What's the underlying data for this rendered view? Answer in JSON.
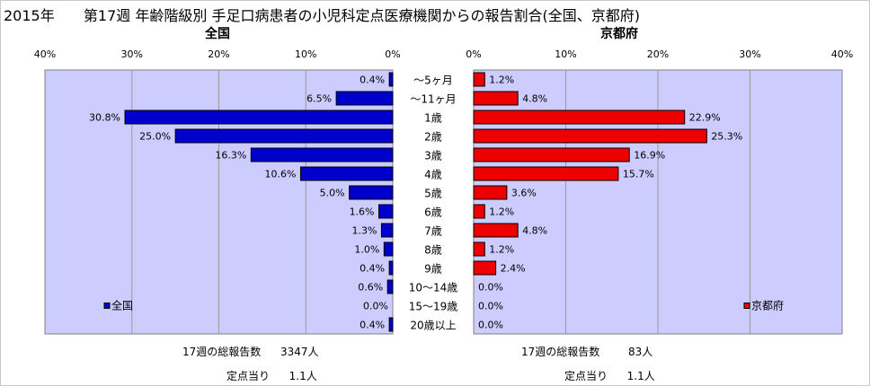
{
  "title": {
    "year": "2015年",
    "main": "第17週 年齢階級別 手足口病患者の小児科定点医療機関からの報告割合(全国、京都府)"
  },
  "chart_data": [
    {
      "type": "bar",
      "orientation": "horizontal",
      "direction": "right-to-left",
      "title": "全国",
      "categories": [
        "～5ヶ月",
        "～11ヶ月",
        "1歳",
        "2歳",
        "3歳",
        "4歳",
        "5歳",
        "6歳",
        "7歳",
        "8歳",
        "9歳",
        "10～14歳",
        "15～19歳",
        "20歳以上"
      ],
      "series": [
        {
          "name": "全国",
          "values": [
            0.4,
            6.5,
            30.8,
            25.0,
            16.3,
            10.6,
            5.0,
            1.6,
            1.3,
            1.0,
            0.4,
            0.6,
            0.0,
            0.4
          ]
        }
      ],
      "value_labels": [
        "0.4%",
        "6.5%",
        "30.8%",
        "25.0%",
        "16.3%",
        "10.6%",
        "5.0%",
        "1.6%",
        "1.3%",
        "1.0%",
        "0.4%",
        "0.6%",
        "0.0%",
        "0.4%"
      ],
      "xlim": [
        0,
        40
      ],
      "x_ticks": [
        "40%",
        "30%",
        "20%",
        "10%",
        "0%"
      ],
      "grid": true,
      "legend": "bottom-left",
      "colors": {
        "bar": "#0000cc",
        "plot_bg": "#ccccff"
      }
    },
    {
      "type": "bar",
      "orientation": "horizontal",
      "direction": "left-to-right",
      "title": "京都府",
      "categories": [
        "～5ヶ月",
        "～11ヶ月",
        "1歳",
        "2歳",
        "3歳",
        "4歳",
        "5歳",
        "6歳",
        "7歳",
        "8歳",
        "9歳",
        "10～14歳",
        "15～19歳",
        "20歳以上"
      ],
      "series": [
        {
          "name": "京都府",
          "values": [
            1.2,
            4.8,
            22.9,
            25.3,
            16.9,
            15.7,
            3.6,
            1.2,
            4.8,
            1.2,
            2.4,
            0.0,
            0.0,
            0.0
          ]
        }
      ],
      "value_labels": [
        "1.2%",
        "4.8%",
        "22.9%",
        "25.3%",
        "16.9%",
        "15.7%",
        "3.6%",
        "1.2%",
        "4.8%",
        "1.2%",
        "2.4%",
        "0.0%",
        "0.0%",
        "0.0%"
      ],
      "xlim": [
        0,
        40
      ],
      "x_ticks": [
        "0%",
        "10%",
        "20%",
        "30%",
        "40%"
      ],
      "grid": true,
      "legend": "bottom-right",
      "colors": {
        "bar": "#ee0000",
        "plot_bg": "#ccccff"
      }
    }
  ],
  "footer": {
    "left": {
      "total_label": "17週の総報告数",
      "total_value": "3347人",
      "per_label": "定点当り",
      "per_value": "1.1人"
    },
    "right": {
      "total_label": "17週の総報告数",
      "total_value": "83人",
      "per_label": "定点当り",
      "per_value": "1.1人"
    }
  }
}
